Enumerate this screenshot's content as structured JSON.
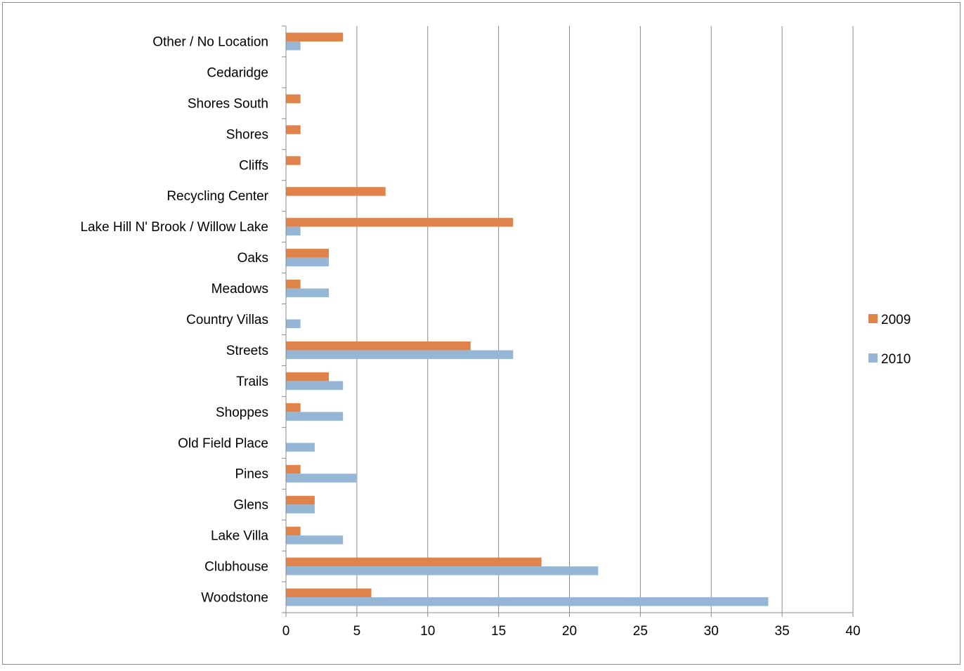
{
  "chart_data": {
    "type": "bar",
    "orientation": "horizontal",
    "categories": [
      "Woodstone",
      "Clubhouse",
      "Lake Villa",
      "Glens",
      "Pines",
      "Old Field Place",
      "Shoppes",
      "Trails",
      "Streets",
      "Country Villas",
      "Meadows",
      "Oaks",
      "Lake Hill N' Brook / Willow Lake",
      "Recycling Center",
      "Cliffs",
      "Shores",
      "Shores South",
      "Cedaridge",
      "Other / No Location"
    ],
    "series": [
      {
        "name": "2009",
        "color": "#e0834a",
        "values": [
          6,
          18,
          1,
          2,
          1,
          0,
          1,
          3,
          13,
          0,
          1,
          3,
          16,
          7,
          1,
          1,
          1,
          0,
          4
        ]
      },
      {
        "name": "2010",
        "color": "#96b6d6",
        "values": [
          34,
          22,
          4,
          2,
          5,
          2,
          4,
          4,
          16,
          1,
          3,
          3,
          1,
          0,
          0,
          0,
          0,
          0,
          1
        ]
      }
    ],
    "xlim": [
      0,
      40
    ],
    "xticks": [
      "0",
      "5",
      "10",
      "15",
      "20",
      "25",
      "30",
      "35",
      "40"
    ],
    "grid": "vertical",
    "legend": "right"
  }
}
